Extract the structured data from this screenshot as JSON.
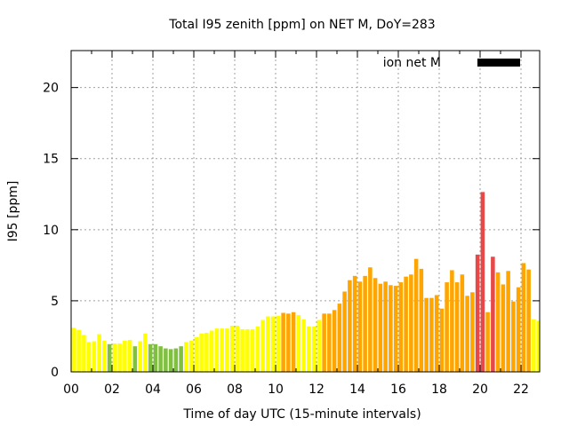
{
  "chart_data": {
    "type": "bar",
    "title": "Total I95 zenith [ppm] on NET M, DoY=283",
    "xlabel": "Time of day UTC (15-minute intervals)",
    "ylabel": "I95 [ppm]",
    "ylim": [
      0,
      22.6
    ],
    "xlim_hours": [
      0,
      23
    ],
    "interval_minutes": 15,
    "grid": true,
    "legend": {
      "placement": "top-right",
      "entries": [
        {
          "label": "ion net M",
          "color": "#000000"
        }
      ]
    },
    "x_ticks": [
      "00",
      "02",
      "04",
      "06",
      "08",
      "10",
      "12",
      "14",
      "16",
      "18",
      "20",
      "22"
    ],
    "x_tick_hours": [
      0,
      2,
      4,
      6,
      8,
      10,
      12,
      14,
      16,
      18,
      20,
      22
    ],
    "y_ticks": [
      "0",
      "5",
      "10",
      "15",
      "20"
    ],
    "y_tick_values": [
      0,
      5,
      10,
      15,
      20
    ],
    "colors": {
      "Y": "#ffff00",
      "G": "#80c040",
      "O": "#ffa500",
      "R": "#e84848"
    },
    "values": [
      3.1,
      2.95,
      2.6,
      2.1,
      2.15,
      2.65,
      2.2,
      1.95,
      2.0,
      2.0,
      2.2,
      2.25,
      1.8,
      2.15,
      2.7,
      1.95,
      1.95,
      1.8,
      1.65,
      1.6,
      1.65,
      1.8,
      2.1,
      2.2,
      2.45,
      2.7,
      2.75,
      2.9,
      3.05,
      3.05,
      3.05,
      3.25,
      3.25,
      3.0,
      3.0,
      3.0,
      3.2,
      3.65,
      3.9,
      3.9,
      3.95,
      4.15,
      4.1,
      4.2,
      4.0,
      3.7,
      3.2,
      3.2,
      3.65,
      4.1,
      4.1,
      4.35,
      4.8,
      5.65,
      6.45,
      6.75,
      6.35,
      6.75,
      7.35,
      6.6,
      6.2,
      6.35,
      6.1,
      6.05,
      6.3,
      6.7,
      6.85,
      7.95,
      7.25,
      5.2,
      5.2,
      5.4,
      4.45,
      6.3,
      7.15,
      6.3,
      6.85,
      5.35,
      5.6,
      8.25,
      12.65,
      4.2,
      8.1,
      7.0,
      6.15,
      7.1,
      4.95,
      5.95,
      7.65,
      7.2,
      3.7,
      3.6
    ],
    "categories_color": [
      "Y",
      "Y",
      "Y",
      "Y",
      "Y",
      "Y",
      "Y",
      "G",
      "Y",
      "Y",
      "Y",
      "Y",
      "G",
      "Y",
      "Y",
      "G",
      "G",
      "G",
      "G",
      "G",
      "G",
      "G",
      "Y",
      "Y",
      "Y",
      "Y",
      "Y",
      "Y",
      "Y",
      "Y",
      "Y",
      "Y",
      "Y",
      "Y",
      "Y",
      "Y",
      "Y",
      "Y",
      "Y",
      "Y",
      "Y",
      "O",
      "O",
      "O",
      "Y",
      "Y",
      "Y",
      "Y",
      "Y",
      "O",
      "O",
      "O",
      "O",
      "O",
      "O",
      "O",
      "O",
      "O",
      "O",
      "O",
      "O",
      "O",
      "O",
      "O",
      "O",
      "O",
      "O",
      "O",
      "O",
      "O",
      "O",
      "O",
      "O",
      "O",
      "O",
      "O",
      "O",
      "O",
      "O",
      "R",
      "R",
      "O",
      "R",
      "O",
      "O",
      "O",
      "O",
      "O",
      "O",
      "O",
      "Y",
      "Y"
    ]
  }
}
